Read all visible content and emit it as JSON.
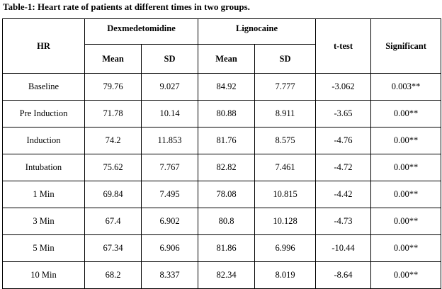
{
  "caption": "Table-1: Heart rate of patients at different times in two groups.",
  "table": {
    "header": {
      "hr": "HR",
      "group1": "Dexmedetomidine",
      "group2": "Lignocaine",
      "ttest": "t-test",
      "significant": "Significant",
      "mean": "Mean",
      "sd": "SD"
    },
    "rows": [
      {
        "label": "Baseline",
        "dex_mean": "79.76",
        "dex_sd": "9.027",
        "lig_mean": "84.92",
        "lig_sd": "7.777",
        "t": "-3.062",
        "sig": "0.003**"
      },
      {
        "label": "Pre Induction",
        "dex_mean": "71.78",
        "dex_sd": "10.14",
        "lig_mean": "80.88",
        "lig_sd": "8.911",
        "t": "-3.65",
        "sig": "0.00**"
      },
      {
        "label": "Induction",
        "dex_mean": "74.2",
        "dex_sd": "11.853",
        "lig_mean": "81.76",
        "lig_sd": "8.575",
        "t": "-4.76",
        "sig": "0.00**"
      },
      {
        "label": "Intubation",
        "dex_mean": "75.62",
        "dex_sd": "7.767",
        "lig_mean": "82.82",
        "lig_sd": "7.461",
        "t": "-4.72",
        "sig": "0.00**"
      },
      {
        "label": "1 Min",
        "dex_mean": "69.84",
        "dex_sd": "7.495",
        "lig_mean": "78.08",
        "lig_sd": "10.815",
        "t": "-4.42",
        "sig": "0.00**"
      },
      {
        "label": "3 Min",
        "dex_mean": "67.4",
        "dex_sd": "6.902",
        "lig_mean": "80.8",
        "lig_sd": "10.128",
        "t": "-4.73",
        "sig": "0.00**"
      },
      {
        "label": "5 Min",
        "dex_mean": "67.34",
        "dex_sd": "6.906",
        "lig_mean": "81.86",
        "lig_sd": "6.996",
        "t": "-10.44",
        "sig": "0.00**"
      },
      {
        "label": "10 Min",
        "dex_mean": "68.2",
        "dex_sd": "8.337",
        "lig_mean": "82.34",
        "lig_sd": "8.019",
        "t": "-8.64",
        "sig": "0.00**"
      }
    ]
  }
}
